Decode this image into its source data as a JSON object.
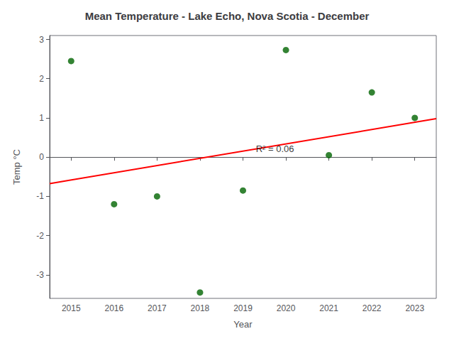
{
  "chart_data": {
    "type": "scatter",
    "title": "Mean Temperature - Lake Echo, Nova Scotia - December",
    "xlabel": "Year",
    "ylabel": "Temp °C",
    "x": [
      2015,
      2016,
      2017,
      2018,
      2019,
      2020,
      2021,
      2022,
      2023
    ],
    "values": [
      2.45,
      -1.2,
      -1.0,
      -3.45,
      -0.85,
      2.73,
      0.05,
      1.65,
      1.0
    ],
    "color": "#006400",
    "trend_line": {
      "x": [
        2014.5,
        2023.5
      ],
      "values": [
        -0.6739166667,
        0.9805833333
      ],
      "color": "red"
    },
    "annotations": [
      {
        "text": "R² = 0.06",
        "x": 2019.3,
        "y": 0.1
      }
    ],
    "xlim": [
      2014.5,
      2023.5
    ],
    "xticks": [
      2015,
      2016,
      2017,
      2018,
      2019,
      2020,
      2021,
      2022,
      2023
    ],
    "ylim": [
      -3.6,
      3.1
    ],
    "yticks": [
      -3,
      -2,
      -1,
      0,
      1,
      2,
      3
    ],
    "grid": false
  }
}
